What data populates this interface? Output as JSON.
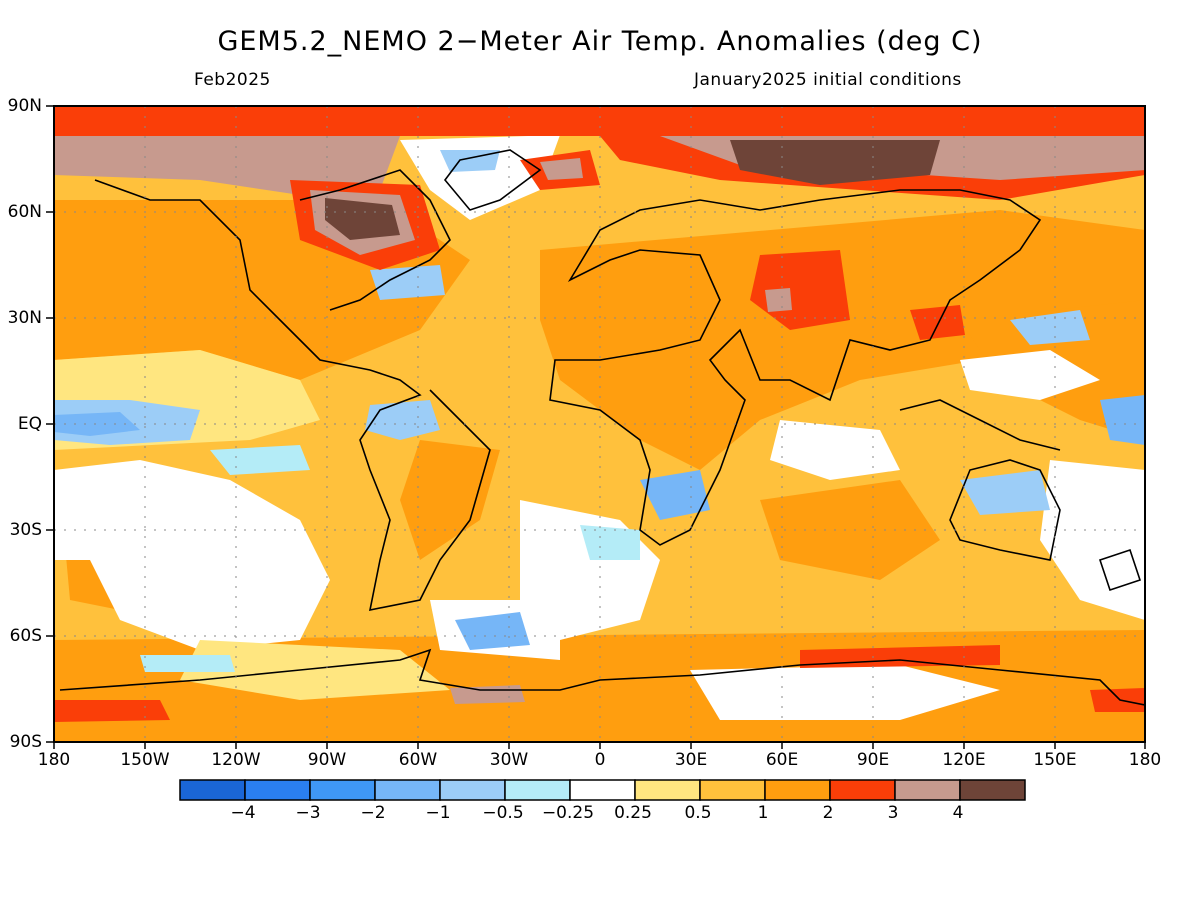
{
  "header": {
    "title": "GEM5.2_NEMO 2−Meter Air Temp. Anomalies (deg C)",
    "valid_month": "Feb2025",
    "init": "January2025 initial conditions"
  },
  "axes": {
    "lat_labels": [
      "90N",
      "60N",
      "30N",
      "EQ",
      "30S",
      "60S",
      "90S"
    ],
    "lon_labels": [
      "180",
      "150W",
      "120W",
      "90W",
      "60W",
      "30W",
      "0",
      "30E",
      "60E",
      "90E",
      "120E",
      "150E",
      "180"
    ]
  },
  "legend": {
    "colors": [
      "#1a66d6",
      "#2a7ff0",
      "#3f97f5",
      "#76b6f7",
      "#9ccdf7",
      "#b4ecf7",
      "#ffffff",
      "#ffe680",
      "#ffc13c",
      "#ff9e0f",
      "#fa3e08",
      "#c79a8e",
      "#6e4438"
    ],
    "labels": [
      "−4",
      "−3",
      "−2",
      "−1",
      "−0.5",
      "−0.25",
      "0.25",
      "0.5",
      "1",
      "2",
      "3",
      "4"
    ]
  },
  "colors": {
    "warm_1": "#ffe680",
    "warm_2": "#ffc13c",
    "warm_3": "#ff9e0f",
    "hot": "#fa3e08",
    "very_hot": "#c79a8e",
    "extreme": "#6e4438",
    "cool_1": "#b4ecf7",
    "cool_2": "#9ccdf7",
    "cool_3": "#76b6f7"
  }
}
